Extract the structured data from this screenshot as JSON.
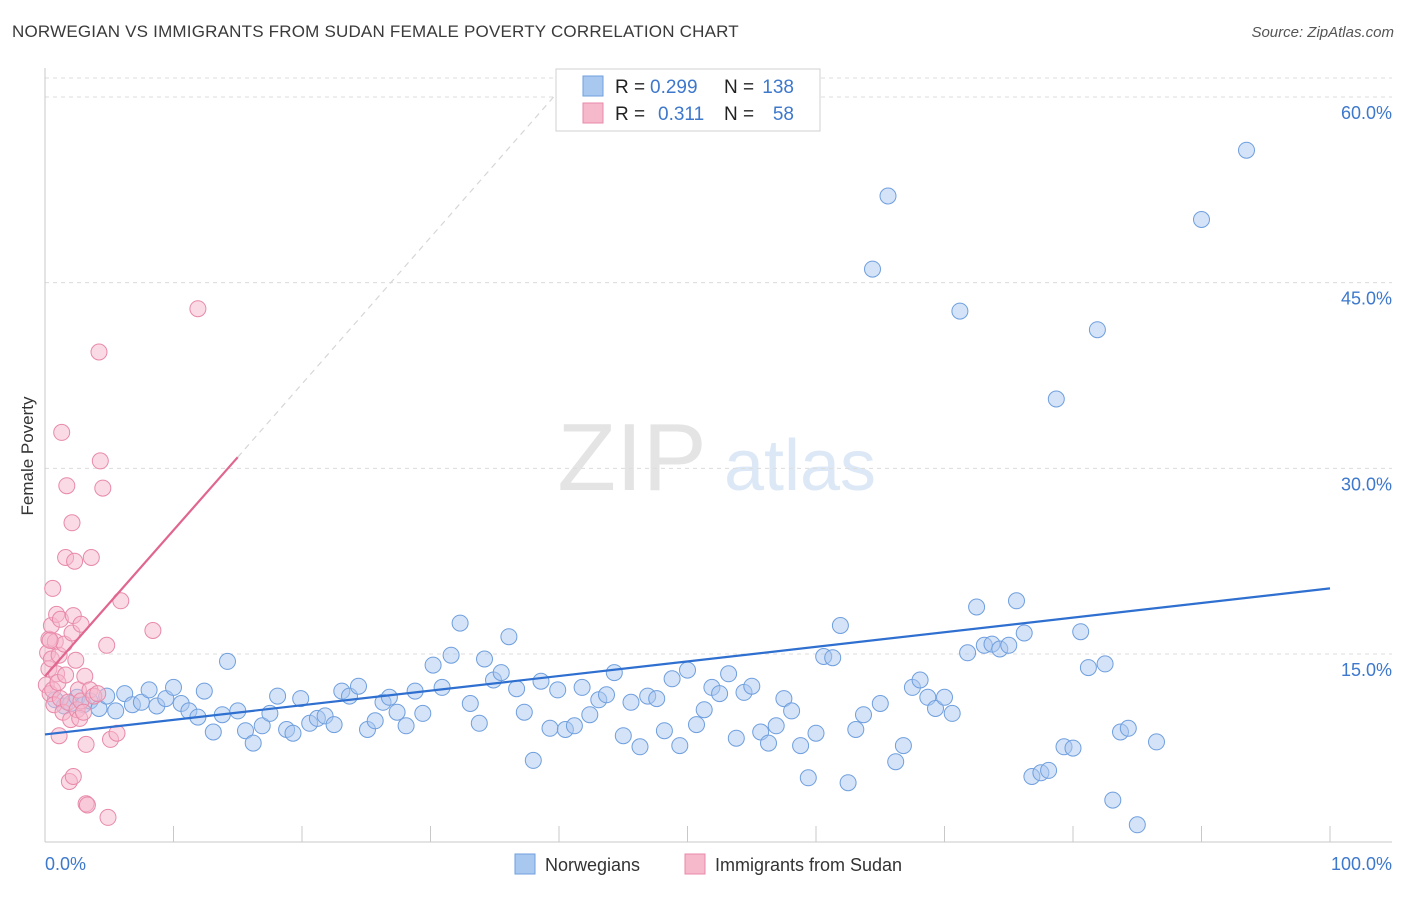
{
  "header": {
    "title": "NORWEGIAN VS IMMIGRANTS FROM SUDAN FEMALE POVERTY CORRELATION CHART",
    "source": "Source: ZipAtlas.com"
  },
  "watermark": {
    "zip": "ZIP",
    "atlas": "atlas"
  },
  "colors": {
    "blue_fill": "#a9c8f0",
    "blue_stroke": "#6f9fde",
    "blue_line": "#2e6fd0",
    "pink_fill": "#f6b8cb",
    "pink_stroke": "#e889a8",
    "pink_line": "#e0668f",
    "axis_label": "#3d78cc",
    "grid": "#dcdcdc"
  },
  "legend_top": {
    "rows": [
      {
        "r_label": "R =",
        "r_value": "0.299",
        "n_label": "N =",
        "n_value": "138"
      },
      {
        "r_label": "R =",
        "r_value": "0.311",
        "n_label": "N =",
        "n_value": "58"
      }
    ]
  },
  "chart_data": {
    "type": "scatter",
    "title": "NORWEGIAN VS IMMIGRANTS FROM SUDAN FEMALE POVERTY CORRELATION CHART",
    "xlabel": "",
    "ylabel": "Female Poverty",
    "xlim": [
      0,
      100
    ],
    "ylim": [
      0,
      62
    ],
    "x_tick_labels": [
      "0.0%",
      "100.0%"
    ],
    "y_ticks": [
      15,
      30,
      45,
      60
    ],
    "y_tick_labels": [
      "15.0%",
      "30.0%",
      "45.0%",
      "60.0%"
    ],
    "grid": true,
    "legend_position": "bottom-center",
    "series": [
      {
        "name": "Norwegians",
        "r": 0.299,
        "n": 138,
        "trend": {
          "x": [
            0,
            100
          ],
          "y": [
            8.5,
            20.3
          ]
        },
        "points": [
          [
            0.8,
            11.3
          ],
          [
            1.5,
            10.8
          ],
          [
            2.0,
            11.0
          ],
          [
            2.5,
            11.5
          ],
          [
            3.0,
            10.9
          ],
          [
            3.5,
            11.2
          ],
          [
            4.2,
            10.6
          ],
          [
            4.8,
            11.6
          ],
          [
            5.5,
            10.4
          ],
          [
            6.2,
            11.8
          ],
          [
            6.8,
            10.9
          ],
          [
            7.5,
            11.1
          ],
          [
            8.1,
            12.1
          ],
          [
            8.7,
            10.8
          ],
          [
            9.4,
            11.4
          ],
          [
            10.0,
            12.3
          ],
          [
            10.6,
            11.0
          ],
          [
            11.2,
            10.4
          ],
          [
            11.9,
            9.9
          ],
          [
            12.4,
            12.0
          ],
          [
            13.1,
            8.7
          ],
          [
            13.8,
            10.1
          ],
          [
            14.2,
            14.4
          ],
          [
            15.0,
            10.4
          ],
          [
            15.6,
            8.8
          ],
          [
            16.2,
            7.8
          ],
          [
            16.9,
            9.2
          ],
          [
            17.5,
            10.2
          ],
          [
            18.1,
            11.6
          ],
          [
            18.8,
            8.9
          ],
          [
            19.3,
            8.6
          ],
          [
            19.9,
            11.4
          ],
          [
            20.6,
            9.4
          ],
          [
            21.2,
            9.8
          ],
          [
            21.8,
            10.0
          ],
          [
            22.5,
            9.3
          ],
          [
            23.1,
            12.0
          ],
          [
            23.7,
            11.6
          ],
          [
            24.4,
            12.4
          ],
          [
            25.1,
            8.9
          ],
          [
            25.7,
            9.6
          ],
          [
            26.3,
            11.1
          ],
          [
            26.8,
            11.5
          ],
          [
            27.4,
            10.3
          ],
          [
            28.1,
            9.2
          ],
          [
            28.8,
            12.0
          ],
          [
            29.4,
            10.2
          ],
          [
            30.2,
            14.1
          ],
          [
            30.9,
            12.3
          ],
          [
            31.6,
            14.9
          ],
          [
            32.3,
            17.5
          ],
          [
            33.1,
            11.0
          ],
          [
            33.8,
            9.4
          ],
          [
            34.2,
            14.6
          ],
          [
            34.9,
            12.9
          ],
          [
            35.5,
            13.5
          ],
          [
            36.1,
            16.4
          ],
          [
            36.7,
            12.2
          ],
          [
            37.3,
            10.3
          ],
          [
            38.0,
            6.4
          ],
          [
            38.6,
            12.8
          ],
          [
            39.3,
            9.0
          ],
          [
            39.9,
            12.1
          ],
          [
            40.5,
            8.9
          ],
          [
            41.2,
            9.2
          ],
          [
            41.8,
            12.3
          ],
          [
            42.4,
            10.1
          ],
          [
            43.1,
            11.3
          ],
          [
            43.7,
            11.7
          ],
          [
            44.3,
            13.5
          ],
          [
            45.0,
            8.4
          ],
          [
            45.6,
            11.1
          ],
          [
            46.3,
            7.5
          ],
          [
            46.9,
            11.6
          ],
          [
            47.6,
            11.4
          ],
          [
            48.2,
            8.8
          ],
          [
            48.8,
            13.0
          ],
          [
            49.4,
            7.6
          ],
          [
            50.0,
            13.7
          ],
          [
            50.7,
            9.3
          ],
          [
            51.3,
            10.5
          ],
          [
            51.9,
            12.3
          ],
          [
            52.5,
            11.8
          ],
          [
            53.2,
            13.4
          ],
          [
            53.8,
            8.2
          ],
          [
            54.4,
            11.9
          ],
          [
            55.0,
            12.4
          ],
          [
            55.7,
            8.7
          ],
          [
            56.3,
            7.8
          ],
          [
            56.9,
            9.2
          ],
          [
            57.5,
            11.4
          ],
          [
            58.1,
            10.4
          ],
          [
            58.8,
            7.6
          ],
          [
            59.4,
            5.0
          ],
          [
            60.0,
            8.6
          ],
          [
            60.6,
            14.8
          ],
          [
            61.3,
            14.7
          ],
          [
            61.9,
            17.3
          ],
          [
            62.5,
            4.6
          ],
          [
            63.1,
            8.9
          ],
          [
            63.7,
            10.1
          ],
          [
            64.4,
            46.1
          ],
          [
            65.0,
            11.0
          ],
          [
            65.6,
            52.0
          ],
          [
            66.2,
            6.3
          ],
          [
            66.8,
            7.6
          ],
          [
            67.5,
            12.3
          ],
          [
            68.1,
            12.9
          ],
          [
            68.7,
            11.5
          ],
          [
            69.3,
            10.6
          ],
          [
            70.0,
            11.5
          ],
          [
            70.6,
            10.2
          ],
          [
            71.2,
            42.7
          ],
          [
            71.8,
            15.1
          ],
          [
            72.5,
            18.8
          ],
          [
            73.1,
            15.7
          ],
          [
            73.7,
            15.8
          ],
          [
            74.3,
            15.4
          ],
          [
            75.0,
            15.7
          ],
          [
            75.6,
            19.3
          ],
          [
            76.2,
            16.7
          ],
          [
            76.8,
            5.1
          ],
          [
            77.5,
            5.4
          ],
          [
            78.1,
            5.6
          ],
          [
            78.7,
            35.6
          ],
          [
            79.3,
            7.5
          ],
          [
            80.0,
            7.4
          ],
          [
            80.6,
            16.8
          ],
          [
            81.2,
            13.9
          ],
          [
            81.9,
            41.2
          ],
          [
            82.5,
            14.2
          ],
          [
            83.1,
            3.2
          ],
          [
            83.7,
            8.7
          ],
          [
            84.3,
            9.0
          ],
          [
            85.0,
            1.2
          ],
          [
            86.5,
            7.9
          ],
          [
            90.0,
            50.1
          ],
          [
            93.5,
            55.7
          ]
        ]
      },
      {
        "name": "Immigrants from Sudan",
        "r": 0.311,
        "n": 58,
        "trend": {
          "x": [
            0,
            15
          ],
          "y": [
            13.2,
            30.9
          ]
        },
        "trend_extension": {
          "x": [
            15,
            40
          ],
          "y": [
            30.9,
            60.5
          ]
        },
        "points": [
          [
            0.1,
            12.5
          ],
          [
            0.2,
            15.1
          ],
          [
            0.3,
            16.2
          ],
          [
            0.3,
            13.8
          ],
          [
            0.4,
            11.8
          ],
          [
            0.5,
            17.3
          ],
          [
            0.5,
            14.6
          ],
          [
            0.6,
            20.3
          ],
          [
            0.6,
            12.1
          ],
          [
            0.7,
            10.9
          ],
          [
            0.8,
            16.0
          ],
          [
            0.9,
            13.4
          ],
          [
            0.9,
            18.2
          ],
          [
            1.0,
            12.7
          ],
          [
            1.1,
            8.4
          ],
          [
            1.1,
            14.9
          ],
          [
            1.2,
            17.8
          ],
          [
            1.2,
            11.4
          ],
          [
            1.3,
            32.9
          ],
          [
            1.4,
            10.3
          ],
          [
            1.5,
            15.8
          ],
          [
            1.6,
            22.8
          ],
          [
            1.6,
            13.3
          ],
          [
            1.7,
            28.6
          ],
          [
            1.8,
            11.1
          ],
          [
            1.9,
            4.7
          ],
          [
            2.0,
            9.7
          ],
          [
            2.1,
            25.6
          ],
          [
            2.1,
            16.7
          ],
          [
            2.2,
            5.1
          ],
          [
            2.2,
            18.1
          ],
          [
            2.3,
            22.5
          ],
          [
            2.4,
            14.5
          ],
          [
            2.5,
            10.5
          ],
          [
            2.6,
            12.1
          ],
          [
            2.7,
            9.8
          ],
          [
            2.8,
            17.4
          ],
          [
            2.8,
            11.2
          ],
          [
            3.0,
            10.3
          ],
          [
            3.1,
            13.2
          ],
          [
            3.2,
            7.7
          ],
          [
            3.2,
            2.9
          ],
          [
            3.3,
            2.8
          ],
          [
            3.5,
            12.1
          ],
          [
            3.6,
            22.8
          ],
          [
            3.8,
            11.6
          ],
          [
            4.1,
            11.8
          ],
          [
            4.2,
            39.4
          ],
          [
            4.3,
            30.6
          ],
          [
            4.5,
            28.4
          ],
          [
            4.8,
            15.7
          ],
          [
            4.9,
            1.8
          ],
          [
            5.1,
            8.1
          ],
          [
            5.6,
            8.6
          ],
          [
            5.9,
            19.3
          ],
          [
            8.4,
            16.9
          ],
          [
            11.9,
            42.9
          ],
          [
            0.4,
            16.1
          ]
        ]
      }
    ]
  },
  "legend_bottom": {
    "items": [
      "Norwegians",
      "Immigrants from Sudan"
    ]
  }
}
